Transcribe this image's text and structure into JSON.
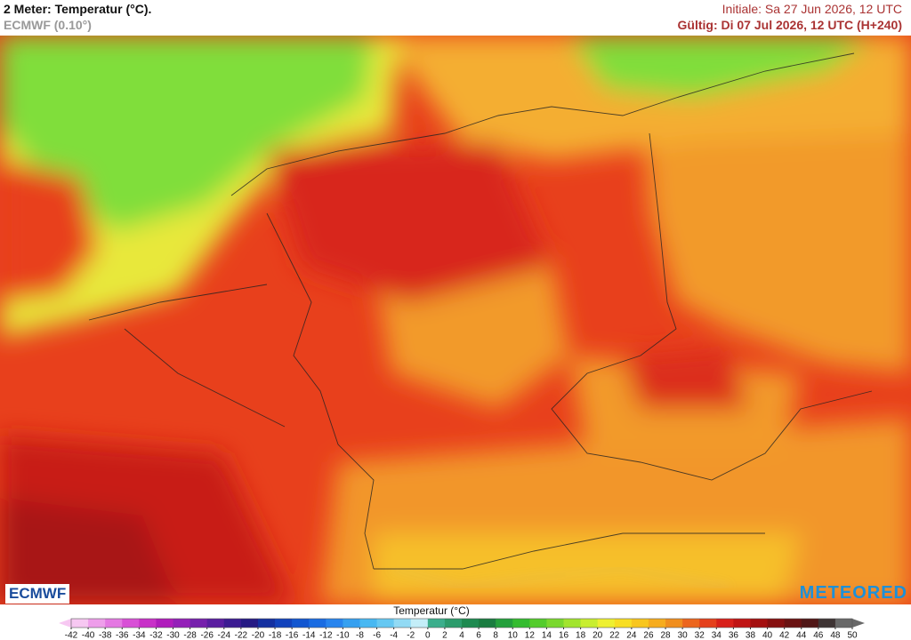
{
  "header": {
    "title": "2 Meter: Temperatur (°C).",
    "model": "ECMWF (0.10°)",
    "initial": "Initiale: Sa 27 Jun 2026, 12 UTC",
    "valid": "Gültig: Di 07 Jul 2026, 12 UTC (H+240)"
  },
  "logos": {
    "left": "ECMWF",
    "right": "METEORED"
  },
  "colorbar": {
    "label": "Temperatur (°C)",
    "ticks": [
      -42,
      -40,
      -38,
      -36,
      -34,
      -32,
      -30,
      -28,
      -26,
      -24,
      -22,
      -20,
      -18,
      -16,
      -14,
      -12,
      -10,
      -8,
      -6,
      -4,
      -2,
      0,
      2,
      4,
      6,
      8,
      10,
      12,
      14,
      16,
      18,
      20,
      22,
      24,
      26,
      28,
      30,
      32,
      34,
      36,
      38,
      40,
      42,
      44,
      46,
      48,
      50
    ],
    "colors": [
      "#f7c8f2",
      "#ee9eea",
      "#e478e2",
      "#d850d6",
      "#c830c8",
      "#b01cbc",
      "#9420b8",
      "#7620ac",
      "#5a1ea0",
      "#3c1c92",
      "#261a84",
      "#1430a0",
      "#1242bc",
      "#1256d0",
      "#1a6ce2",
      "#2884ee",
      "#36a0f0",
      "#48b8f2",
      "#66c8f2",
      "#92daf4",
      "#c4eef8",
      "#3cae8c",
      "#2c9c6c",
      "#1e8a50",
      "#1a7c40",
      "#24a03c",
      "#34bc30",
      "#54cc2c",
      "#7ad82e",
      "#a2e42e",
      "#c8ee30",
      "#eef032",
      "#f8de24",
      "#f8c61e",
      "#f6ac1e",
      "#f08e1e",
      "#ec661e",
      "#e4401c",
      "#d8201a",
      "#c01414",
      "#a41010",
      "#861010",
      "#6a1212",
      "#501616",
      "#3e3434",
      "#686868"
    ]
  }
}
